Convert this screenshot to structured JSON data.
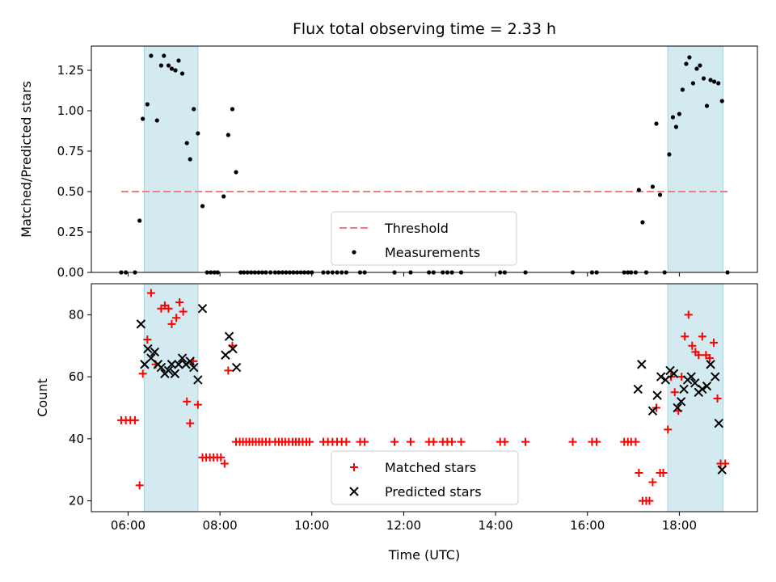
{
  "chart_data": [
    {
      "type": "scatter",
      "title": "Flux total observing time = 2.33 h",
      "xlabel": "",
      "ylabel": "Matched/Predicted stars",
      "xlim": [
        5.2,
        19.7
      ],
      "ylim": [
        0.0,
        1.4
      ],
      "yticks": [
        "0.00",
        "0.25",
        "0.50",
        "0.75",
        "1.00",
        "1.25"
      ],
      "grid": false,
      "legend_position": "lower-center",
      "shaded_windows": [
        [
          6.35,
          7.52
        ],
        [
          17.75,
          18.95
        ]
      ],
      "shade_color": "#d4eaf1",
      "threshold": {
        "name": "Threshold",
        "value": 0.5,
        "x": [
          5.85,
          19.05
        ],
        "color": "#f07e7e"
      },
      "series": [
        {
          "name": "Measurements",
          "marker": "dot",
          "color": "#000000",
          "points": [
            [
              5.85,
              0.0
            ],
            [
              5.95,
              0.0
            ],
            [
              6.15,
              0.0
            ],
            [
              6.25,
              0.32
            ],
            [
              6.32,
              0.95
            ],
            [
              6.42,
              1.04
            ],
            [
              6.5,
              1.34
            ],
            [
              6.63,
              0.94
            ],
            [
              6.72,
              1.28
            ],
            [
              6.78,
              1.34
            ],
            [
              6.88,
              1.28
            ],
            [
              6.95,
              1.26
            ],
            [
              7.03,
              1.25
            ],
            [
              7.1,
              1.31
            ],
            [
              7.18,
              1.23
            ],
            [
              7.28,
              0.8
            ],
            [
              7.35,
              0.7
            ],
            [
              7.43,
              1.01
            ],
            [
              7.52,
              0.86
            ],
            [
              7.62,
              0.41
            ],
            [
              7.72,
              0.0
            ],
            [
              7.8,
              0.0
            ],
            [
              7.88,
              0.0
            ],
            [
              7.95,
              0.0
            ],
            [
              8.08,
              0.47
            ],
            [
              8.18,
              0.85
            ],
            [
              8.27,
              1.01
            ],
            [
              8.35,
              0.62
            ],
            [
              8.45,
              0.0
            ],
            [
              8.52,
              0.0
            ],
            [
              8.6,
              0.0
            ],
            [
              8.68,
              0.0
            ],
            [
              8.76,
              0.0
            ],
            [
              8.84,
              0.0
            ],
            [
              8.92,
              0.0
            ],
            [
              9.0,
              0.0
            ],
            [
              9.1,
              0.0
            ],
            [
              9.2,
              0.0
            ],
            [
              9.28,
              0.0
            ],
            [
              9.36,
              0.0
            ],
            [
              9.44,
              0.0
            ],
            [
              9.52,
              0.0
            ],
            [
              9.6,
              0.0
            ],
            [
              9.68,
              0.0
            ],
            [
              9.76,
              0.0
            ],
            [
              9.84,
              0.0
            ],
            [
              9.92,
              0.0
            ],
            [
              10.0,
              0.0
            ],
            [
              10.25,
              0.0
            ],
            [
              10.35,
              0.0
            ],
            [
              10.45,
              0.0
            ],
            [
              10.55,
              0.0
            ],
            [
              10.65,
              0.0
            ],
            [
              10.75,
              0.0
            ],
            [
              11.05,
              0.0
            ],
            [
              11.15,
              0.0
            ],
            [
              11.8,
              0.0
            ],
            [
              12.15,
              0.0
            ],
            [
              12.55,
              0.0
            ],
            [
              12.65,
              0.0
            ],
            [
              12.85,
              0.0
            ],
            [
              12.95,
              0.0
            ],
            [
              13.05,
              0.0
            ],
            [
              13.25,
              0.0
            ],
            [
              14.1,
              0.0
            ],
            [
              14.2,
              0.0
            ],
            [
              14.65,
              0.0
            ],
            [
              15.68,
              0.0
            ],
            [
              16.1,
              0.0
            ],
            [
              16.2,
              0.0
            ],
            [
              16.8,
              0.0
            ],
            [
              16.88,
              0.0
            ],
            [
              16.95,
              0.0
            ],
            [
              17.05,
              0.0
            ],
            [
              17.12,
              0.51
            ],
            [
              17.2,
              0.31
            ],
            [
              17.28,
              0.0
            ],
            [
              17.42,
              0.53
            ],
            [
              17.5,
              0.92
            ],
            [
              17.58,
              0.48
            ],
            [
              17.68,
              0.0
            ],
            [
              17.78,
              0.73
            ],
            [
              17.86,
              0.96
            ],
            [
              17.93,
              0.9
            ],
            [
              18.0,
              0.98
            ],
            [
              18.07,
              1.13
            ],
            [
              18.15,
              1.29
            ],
            [
              18.22,
              1.33
            ],
            [
              18.3,
              1.17
            ],
            [
              18.38,
              1.26
            ],
            [
              18.45,
              1.28
            ],
            [
              18.53,
              1.2
            ],
            [
              18.6,
              1.03
            ],
            [
              18.68,
              1.19
            ],
            [
              18.76,
              1.18
            ],
            [
              18.85,
              1.17
            ],
            [
              18.93,
              1.06
            ],
            [
              19.05,
              0.0
            ]
          ]
        }
      ]
    },
    {
      "type": "scatter",
      "title": "",
      "xlabel": "Time (UTC)",
      "ylabel": "Count",
      "xlim": [
        5.2,
        19.7
      ],
      "ylim": [
        16.5,
        90.0
      ],
      "xticks": [
        [
          6,
          "06:00"
        ],
        [
          8,
          "08:00"
        ],
        [
          10,
          "10:00"
        ],
        [
          12,
          "12:00"
        ],
        [
          14,
          "14:00"
        ],
        [
          16,
          "16:00"
        ],
        [
          18,
          "18:00"
        ]
      ],
      "yticks": [
        "20",
        "40",
        "60",
        "80"
      ],
      "grid": false,
      "legend_position": "lower-center",
      "series": [
        {
          "name": "Matched stars",
          "marker": "plus",
          "color": "#ff0000",
          "points": [
            [
              5.85,
              46
            ],
            [
              5.95,
              46
            ],
            [
              6.05,
              46
            ],
            [
              6.15,
              46
            ],
            [
              6.25,
              25
            ],
            [
              6.32,
              61
            ],
            [
              6.42,
              72
            ],
            [
              6.5,
              87
            ],
            [
              6.6,
              64
            ],
            [
              6.72,
              82
            ],
            [
              6.8,
              83
            ],
            [
              6.88,
              82
            ],
            [
              6.95,
              77
            ],
            [
              7.05,
              79
            ],
            [
              7.12,
              84
            ],
            [
              7.2,
              81
            ],
            [
              7.28,
              52
            ],
            [
              7.35,
              45
            ],
            [
              7.42,
              65
            ],
            [
              7.52,
              51
            ],
            [
              7.62,
              34
            ],
            [
              7.7,
              34
            ],
            [
              7.78,
              34
            ],
            [
              7.86,
              34
            ],
            [
              7.94,
              34
            ],
            [
              8.02,
              34
            ],
            [
              8.1,
              32
            ],
            [
              8.18,
              62
            ],
            [
              8.27,
              70
            ],
            [
              8.35,
              39
            ],
            [
              8.43,
              39
            ],
            [
              8.5,
              39
            ],
            [
              8.57,
              39
            ],
            [
              8.64,
              39
            ],
            [
              8.71,
              39
            ],
            [
              8.78,
              39
            ],
            [
              8.85,
              39
            ],
            [
              8.92,
              39
            ],
            [
              9.0,
              39
            ],
            [
              9.08,
              39
            ],
            [
              9.2,
              39
            ],
            [
              9.28,
              39
            ],
            [
              9.35,
              39
            ],
            [
              9.42,
              39
            ],
            [
              9.5,
              39
            ],
            [
              9.58,
              39
            ],
            [
              9.65,
              39
            ],
            [
              9.72,
              39
            ],
            [
              9.8,
              39
            ],
            [
              9.88,
              39
            ],
            [
              9.95,
              39
            ],
            [
              10.25,
              39
            ],
            [
              10.35,
              39
            ],
            [
              10.45,
              39
            ],
            [
              10.55,
              39
            ],
            [
              10.65,
              39
            ],
            [
              10.75,
              39
            ],
            [
              11.05,
              39
            ],
            [
              11.15,
              39
            ],
            [
              11.8,
              39
            ],
            [
              12.15,
              39
            ],
            [
              12.55,
              39
            ],
            [
              12.65,
              39
            ],
            [
              12.85,
              39
            ],
            [
              12.95,
              39
            ],
            [
              13.05,
              39
            ],
            [
              13.25,
              39
            ],
            [
              14.1,
              39
            ],
            [
              14.2,
              39
            ],
            [
              14.65,
              39
            ],
            [
              15.68,
              39
            ],
            [
              16.1,
              39
            ],
            [
              16.2,
              39
            ],
            [
              16.8,
              39
            ],
            [
              16.88,
              39
            ],
            [
              16.95,
              39
            ],
            [
              17.05,
              39
            ],
            [
              17.12,
              29
            ],
            [
              17.2,
              20
            ],
            [
              17.28,
              20
            ],
            [
              17.35,
              20
            ],
            [
              17.42,
              26
            ],
            [
              17.5,
              50
            ],
            [
              17.58,
              29
            ],
            [
              17.65,
              29
            ],
            [
              17.75,
              43
            ],
            [
              17.82,
              60
            ],
            [
              17.9,
              55
            ],
            [
              17.98,
              49
            ],
            [
              18.05,
              60
            ],
            [
              18.12,
              73
            ],
            [
              18.2,
              80
            ],
            [
              18.28,
              70
            ],
            [
              18.35,
              68
            ],
            [
              18.42,
              67
            ],
            [
              18.5,
              73
            ],
            [
              18.58,
              67
            ],
            [
              18.66,
              66
            ],
            [
              18.75,
              71
            ],
            [
              18.83,
              53
            ],
            [
              18.9,
              32
            ],
            [
              19.0,
              32
            ]
          ]
        },
        {
          "name": "Predicted stars",
          "marker": "x",
          "color": "#000000",
          "points": [
            [
              6.28,
              77
            ],
            [
              6.36,
              64
            ],
            [
              6.43,
              69
            ],
            [
              6.5,
              66
            ],
            [
              6.58,
              68
            ],
            [
              6.65,
              64
            ],
            [
              6.72,
              63
            ],
            [
              6.8,
              61
            ],
            [
              6.88,
              62
            ],
            [
              6.95,
              64
            ],
            [
              7.02,
              61
            ],
            [
              7.1,
              64
            ],
            [
              7.18,
              66
            ],
            [
              7.26,
              64
            ],
            [
              7.35,
              65
            ],
            [
              7.43,
              63
            ],
            [
              7.52,
              59
            ],
            [
              7.62,
              82
            ],
            [
              8.12,
              67
            ],
            [
              8.2,
              73
            ],
            [
              8.28,
              69
            ],
            [
              8.36,
              63
            ],
            [
              17.1,
              56
            ],
            [
              17.18,
              64
            ],
            [
              17.42,
              49
            ],
            [
              17.52,
              54
            ],
            [
              17.6,
              60
            ],
            [
              17.7,
              59
            ],
            [
              17.8,
              62
            ],
            [
              17.88,
              61
            ],
            [
              17.96,
              50
            ],
            [
              18.04,
              52
            ],
            [
              18.1,
              56
            ],
            [
              18.18,
              59
            ],
            [
              18.26,
              60
            ],
            [
              18.34,
              58
            ],
            [
              18.42,
              55
            ],
            [
              18.5,
              56
            ],
            [
              18.6,
              57
            ],
            [
              18.68,
              64
            ],
            [
              18.78,
              60
            ],
            [
              18.86,
              45
            ],
            [
              18.93,
              30
            ]
          ]
        }
      ]
    }
  ]
}
